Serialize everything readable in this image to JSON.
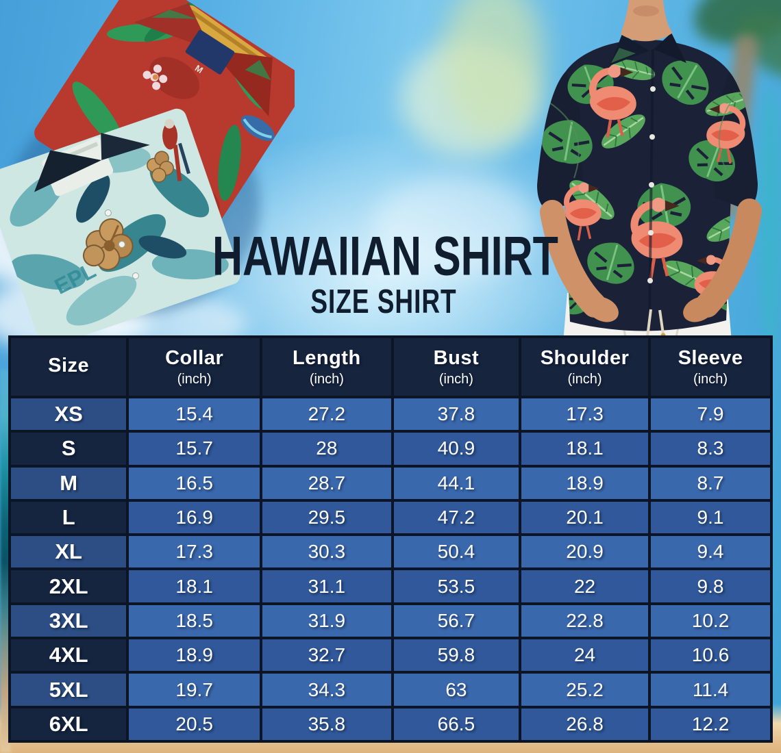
{
  "title": "HAWAIIAN SHIRT",
  "subtitle": "SIZE SHIRT",
  "photos": {
    "left_shirt_text": "EPL",
    "red_shirt_size_tag": "M"
  },
  "table": {
    "header": [
      {
        "label": "Size",
        "sub": ""
      },
      {
        "label": "Collar",
        "sub": "(inch)"
      },
      {
        "label": "Length",
        "sub": "(inch)"
      },
      {
        "label": "Bust",
        "sub": "(inch)"
      },
      {
        "label": "Shoulder",
        "sub": "(inch)"
      },
      {
        "label": "Sleeve",
        "sub": "(inch)"
      }
    ],
    "rows": [
      {
        "size": "XS",
        "values": [
          "15.4",
          "27.2",
          "37.8",
          "17.3",
          "7.9"
        ]
      },
      {
        "size": "S",
        "values": [
          "15.7",
          "28",
          "40.9",
          "18.1",
          "8.3"
        ]
      },
      {
        "size": "M",
        "values": [
          "16.5",
          "28.7",
          "44.1",
          "18.9",
          "8.7"
        ]
      },
      {
        "size": "L",
        "values": [
          "16.9",
          "29.5",
          "47.2",
          "20.1",
          "9.1"
        ]
      },
      {
        "size": "XL",
        "values": [
          "17.3",
          "30.3",
          "50.4",
          "20.9",
          "9.4"
        ]
      },
      {
        "size": "2XL",
        "values": [
          "18.1",
          "31.1",
          "53.5",
          "22",
          "9.8"
        ]
      },
      {
        "size": "3XL",
        "values": [
          "18.5",
          "31.9",
          "56.7",
          "22.8",
          "10.2"
        ]
      },
      {
        "size": "4XL",
        "values": [
          "18.9",
          "32.7",
          "59.8",
          "24",
          "10.6"
        ]
      },
      {
        "size": "5XL",
        "values": [
          "19.7",
          "34.3",
          "63",
          "25.2",
          "11.4"
        ]
      },
      {
        "size": "6XL",
        "values": [
          "20.5",
          "35.8",
          "66.5",
          "26.8",
          "12.2"
        ]
      }
    ]
  },
  "chart_data": {
    "type": "table",
    "title": "HAWAIIAN SHIRT",
    "subtitle": "SIZE SHIRT",
    "columns": [
      "Size",
      "Collar (inch)",
      "Length (inch)",
      "Bust (inch)",
      "Shoulder (inch)",
      "Sleeve (inch)"
    ],
    "rows": [
      [
        "XS",
        15.4,
        27.2,
        37.8,
        17.3,
        7.9
      ],
      [
        "S",
        15.7,
        28,
        40.9,
        18.1,
        8.3
      ],
      [
        "M",
        16.5,
        28.7,
        44.1,
        18.9,
        8.7
      ],
      [
        "L",
        16.9,
        29.5,
        47.2,
        20.1,
        9.1
      ],
      [
        "XL",
        17.3,
        30.3,
        50.4,
        20.9,
        9.4
      ],
      [
        "2XL",
        18.1,
        31.1,
        53.5,
        22,
        9.8
      ],
      [
        "3XL",
        18.5,
        31.9,
        56.7,
        22.8,
        10.2
      ],
      [
        "4XL",
        18.9,
        32.7,
        59.8,
        24,
        10.6
      ],
      [
        "5XL",
        19.7,
        34.3,
        63,
        25.2,
        11.4
      ],
      [
        "6XL",
        20.5,
        35.8,
        66.5,
        26.8,
        12.2
      ]
    ]
  },
  "colors": {
    "header_bg": "#16243e",
    "row_light_size": "#2c4e84",
    "row_light_value": "#3a68ad",
    "row_dark_size": "#15243f",
    "row_dark_value": "#30589a",
    "table_border": "#0b1526",
    "title_text": "#0f1d2e",
    "table_text": "#ffffff",
    "sky": "#5fb6e6",
    "sand": "#e3bd8a",
    "model_shirt_navy": "#1b2237",
    "flamingo_pink": "#ef8b72",
    "leaf_green": "#41924f",
    "red_shirt": "#b8392e",
    "teal_shirt": "#cfe7e3"
  }
}
